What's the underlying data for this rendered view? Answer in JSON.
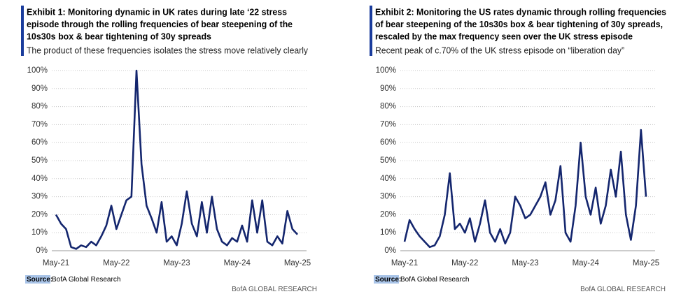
{
  "chart_data": [
    {
      "type": "line",
      "title": [
        "Exhibit 1: Monitoring dynamic in UK rates during late ‘22 stress",
        "episode through the rolling frequencies of bear steepening of the",
        "10s30s box & bear tightening of 30y spreads"
      ],
      "subtitle": "The product of these frequencies isolates the stress move relatively clearly",
      "x": [
        "May-21",
        null,
        null,
        null,
        null,
        null,
        null,
        null,
        null,
        null,
        null,
        null,
        "May-22",
        null,
        null,
        null,
        null,
        null,
        null,
        null,
        null,
        null,
        null,
        null,
        "May-23",
        null,
        null,
        null,
        null,
        null,
        null,
        null,
        null,
        null,
        null,
        null,
        "May-24",
        null,
        null,
        null,
        null,
        null,
        null,
        null,
        null,
        null,
        null,
        null,
        "May-25"
      ],
      "series": [
        {
          "color": "#14266e",
          "values": [
            20,
            15,
            12,
            2,
            1,
            3,
            2,
            5,
            3,
            8,
            14,
            25,
            12,
            20,
            28,
            30,
            100,
            48,
            25,
            18,
            10,
            27,
            5,
            8,
            3,
            15,
            33,
            15,
            8,
            27,
            10,
            30,
            12,
            5,
            3,
            7,
            5,
            14,
            5,
            28,
            10,
            28,
            5,
            3,
            8,
            4,
            22,
            12,
            9
          ]
        }
      ],
      "ylim": [
        0,
        100
      ],
      "yticks": [
        {
          "value": 0,
          "label": "0%"
        },
        {
          "value": 10,
          "label": "10%"
        },
        {
          "value": 20,
          "label": "20%"
        },
        {
          "value": 30,
          "label": "30%"
        },
        {
          "value": 40,
          "label": "40%"
        },
        {
          "value": 50,
          "label": "50%"
        },
        {
          "value": 60,
          "label": "60%"
        },
        {
          "value": 70,
          "label": "70%"
        },
        {
          "value": 80,
          "label": "80%"
        },
        {
          "value": 90,
          "label": "90%"
        },
        {
          "value": 100,
          "label": "100%"
        }
      ],
      "grid": true,
      "source_label": "Source:",
      "source": "BofA Global Research",
      "footer": "BofA GLOBAL RESEARCH"
    },
    {
      "type": "line",
      "title": [
        "Exhibit 2: Monitoring the US rates dynamic through rolling frequencies",
        "of bear steepening of the 10s30s box & bear tightening of 30y spreads,",
        "rescaled by the max frequency seen over the UK stress episode"
      ],
      "subtitle": "Recent peak of c.70% of the UK stress episode on “liberation day”",
      "x": [
        "May-21",
        null,
        null,
        null,
        null,
        null,
        null,
        null,
        null,
        null,
        null,
        null,
        "May-22",
        null,
        null,
        null,
        null,
        null,
        null,
        null,
        null,
        null,
        null,
        null,
        "May-23",
        null,
        null,
        null,
        null,
        null,
        null,
        null,
        null,
        null,
        null,
        null,
        "May-24",
        null,
        null,
        null,
        null,
        null,
        null,
        null,
        null,
        null,
        null,
        null,
        "May-25"
      ],
      "series": [
        {
          "color": "#14266e",
          "values": [
            5,
            17,
            12,
            8,
            5,
            2,
            3,
            8,
            20,
            43,
            12,
            15,
            10,
            18,
            5,
            15,
            28,
            10,
            5,
            12,
            4,
            10,
            30,
            25,
            18,
            20,
            25,
            30,
            38,
            20,
            28,
            47,
            10,
            5,
            25,
            60,
            30,
            20,
            35,
            15,
            25,
            45,
            30,
            55,
            20,
            6,
            25,
            67,
            30
          ]
        }
      ],
      "ylim": [
        0,
        100
      ],
      "yticks": [
        {
          "value": 0,
          "label": "0%"
        },
        {
          "value": 10,
          "label": "10%"
        },
        {
          "value": 20,
          "label": "20%"
        },
        {
          "value": 30,
          "label": "30%"
        },
        {
          "value": 40,
          "label": "40%"
        },
        {
          "value": 50,
          "label": "50%"
        },
        {
          "value": 60,
          "label": "60%"
        },
        {
          "value": 70,
          "label": "70%"
        },
        {
          "value": 80,
          "label": "80%"
        },
        {
          "value": 90,
          "label": "90%"
        },
        {
          "value": 100,
          "label": "100%"
        }
      ],
      "grid": true,
      "source_label": "Source:",
      "source": "BofA Global Research",
      "footer": "BofA GLOBAL RESEARCH"
    }
  ]
}
